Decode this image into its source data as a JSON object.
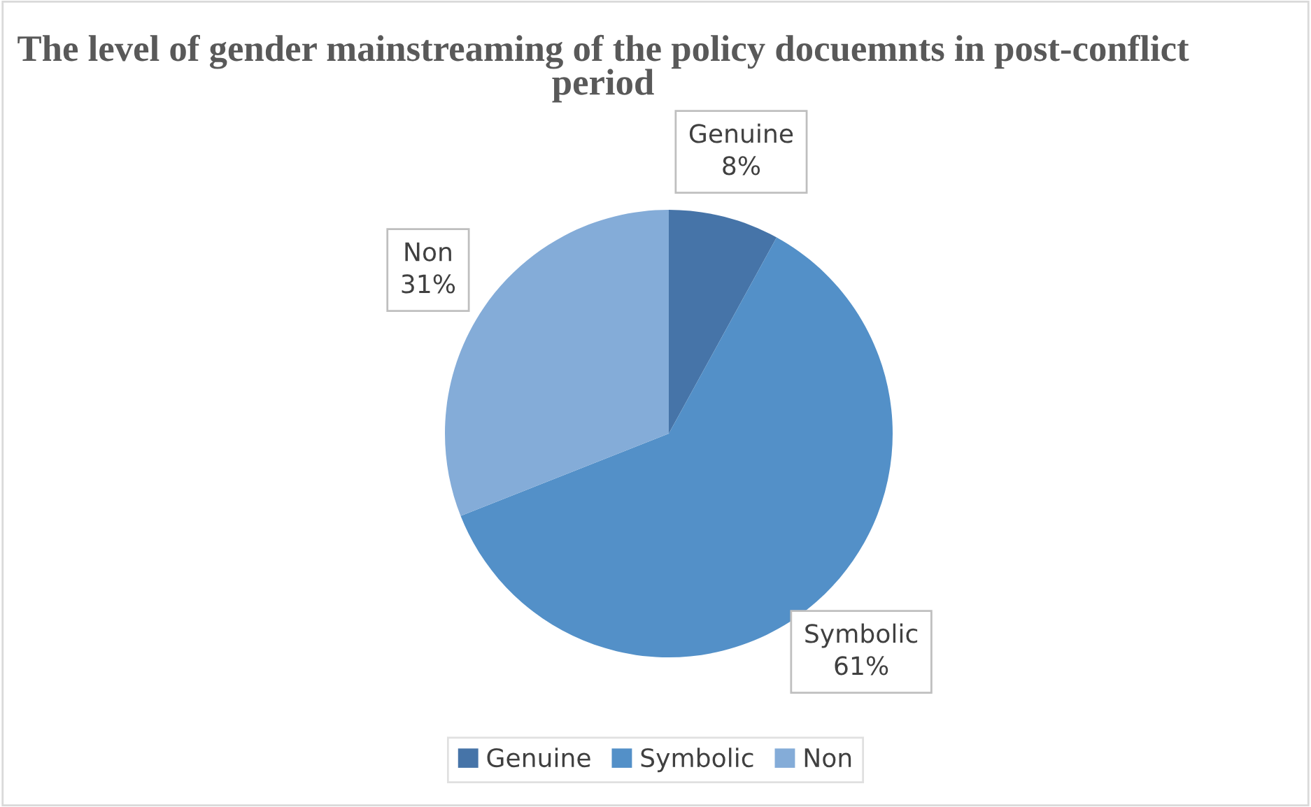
{
  "chart_data": {
    "type": "pie",
    "title": "The level of gender mainstreaming of the policy docuemnts in post-conflict period",
    "categories": [
      "Genuine",
      "Symbolic",
      "Non"
    ],
    "values": [
      8,
      61,
      31
    ],
    "value_labels": [
      "8%",
      "61%",
      "31%"
    ],
    "colors": [
      "#4674a8",
      "#5390c8",
      "#84acd8"
    ],
    "legend": "bottom"
  }
}
